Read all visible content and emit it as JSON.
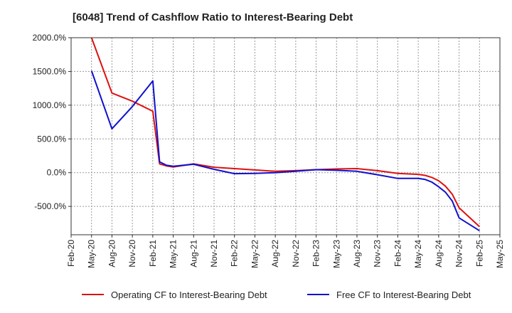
{
  "chart_data": {
    "type": "line",
    "title": "[6048]  Trend of Cashflow Ratio to Interest-Bearing Debt",
    "xlabel": "",
    "ylabel": "",
    "x_ticks": [
      "Feb-20",
      "May-20",
      "Aug-20",
      "Nov-20",
      "Feb-21",
      "May-21",
      "Aug-21",
      "Nov-21",
      "Feb-22",
      "May-22",
      "Aug-22",
      "Nov-22",
      "Feb-23",
      "May-23",
      "Aug-23",
      "Nov-23",
      "Feb-24",
      "May-24",
      "Aug-24",
      "Nov-24",
      "Feb-25",
      "May-25"
    ],
    "y_ticks": [
      2000,
      1500,
      1000,
      500,
      0,
      -500
    ],
    "y_tick_labels": [
      "2000.0%",
      "1500.0%",
      "1000.0%",
      "500.0%",
      "0.0%",
      "-500.0%"
    ],
    "ylim": [
      -920,
      2000
    ],
    "grid": true,
    "legend_position": "bottom",
    "series": [
      {
        "name": "Operating CF to Interest-Bearing Debt",
        "color": "#dd1111",
        "x": [
          "May-20",
          "Aug-20",
          "Nov-20",
          "Feb-21",
          "Mar-21",
          "Apr-21",
          "May-21",
          "Aug-21",
          "Nov-21",
          "Feb-22",
          "May-22",
          "Aug-22",
          "Nov-22",
          "Feb-23",
          "May-23",
          "Aug-23",
          "Nov-23",
          "Feb-24",
          "May-24",
          "Jun-24",
          "Jul-24",
          "Aug-24",
          "Sep-24",
          "Oct-24",
          "Nov-24",
          "Feb-25"
        ],
        "values": [
          2000,
          1180,
          1060,
          910,
          130,
          100,
          85,
          130,
          80,
          60,
          40,
          20,
          30,
          45,
          55,
          60,
          30,
          -10,
          -25,
          -40,
          -70,
          -120,
          -200,
          -320,
          -520,
          -800
        ]
      },
      {
        "name": "Free CF to Interest-Bearing Debt",
        "color": "#1111cc",
        "x": [
          "May-20",
          "Aug-20",
          "Nov-20",
          "Feb-21",
          "Mar-21",
          "Apr-21",
          "May-21",
          "Aug-21",
          "Nov-21",
          "Feb-22",
          "May-22",
          "Aug-22",
          "Nov-22",
          "Feb-23",
          "May-23",
          "Aug-23",
          "Nov-23",
          "Feb-24",
          "May-24",
          "Jun-24",
          "Jul-24",
          "Aug-24",
          "Sep-24",
          "Oct-24",
          "Nov-24",
          "Feb-25"
        ],
        "values": [
          1510,
          650,
          980,
          1360,
          160,
          110,
          95,
          125,
          50,
          -15,
          -10,
          0,
          20,
          45,
          35,
          20,
          -30,
          -85,
          -85,
          -100,
          -140,
          -210,
          -290,
          -420,
          -670,
          -860
        ]
      }
    ]
  }
}
